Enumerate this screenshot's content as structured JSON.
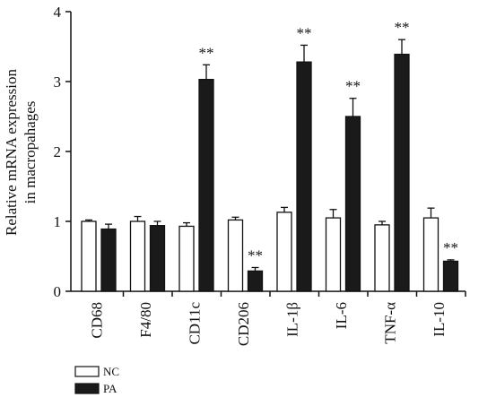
{
  "chart_data": {
    "type": "bar",
    "ylabel_line1": "Relative mRNA expression",
    "ylabel_line2": "in macropahages",
    "categories": [
      "CD68",
      "F4/80",
      "CD11c",
      "CD206",
      "IL-1β",
      "IL-6",
      "TNF-α",
      "IL-10"
    ],
    "ylim": [
      0,
      4
    ],
    "yticks": [
      "0",
      "1",
      "2",
      "3",
      "4"
    ],
    "series": [
      {
        "name": "NC",
        "fill": "#ffffff",
        "values": [
          1.0,
          1.0,
          0.93,
          1.02,
          1.13,
          1.05,
          0.95,
          1.05
        ],
        "errors": [
          0.02,
          0.07,
          0.05,
          0.04,
          0.07,
          0.12,
          0.05,
          0.14
        ],
        "significance": [
          "",
          "",
          "",
          "",
          "",
          "",
          "",
          ""
        ]
      },
      {
        "name": "PA",
        "fill": "#1a1a1a",
        "values": [
          0.89,
          0.94,
          3.03,
          0.29,
          3.28,
          2.5,
          3.39,
          0.43
        ],
        "errors": [
          0.07,
          0.06,
          0.21,
          0.05,
          0.24,
          0.26,
          0.21,
          0.02
        ],
        "significance": [
          "",
          "",
          "**",
          "**",
          "**",
          "**",
          "**",
          "**"
        ]
      }
    ],
    "legend": [
      "NC",
      "PA"
    ],
    "legend_position": "bottom-left",
    "grid": false
  }
}
